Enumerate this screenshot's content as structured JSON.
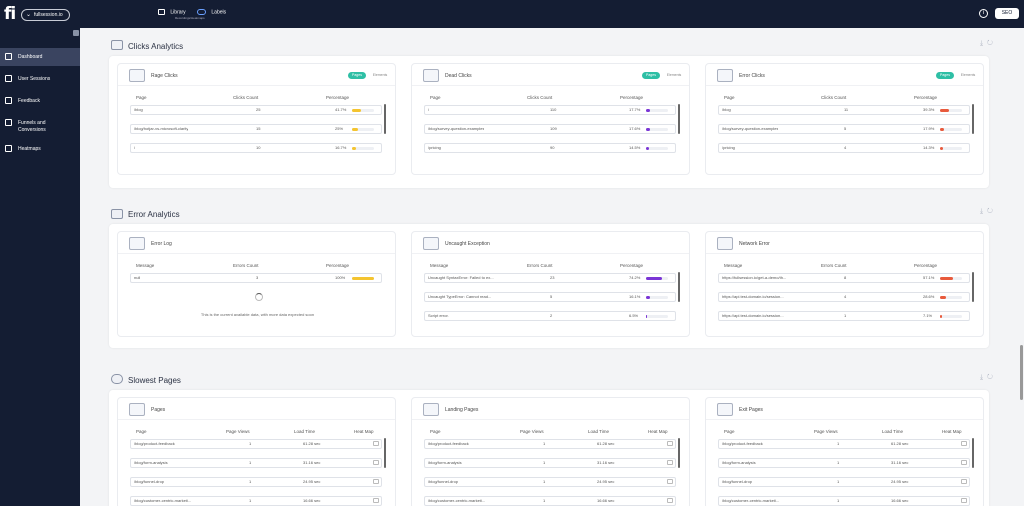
{
  "topbar": {
    "logo": "fi",
    "domain": "fullsession.io",
    "library": "Library",
    "library_sub": "Recordings/Heatmaps",
    "labels": "Labels",
    "info_icon": "info-icon",
    "user_button": "SEO"
  },
  "sidebar": {
    "items": [
      {
        "label": "Dashboard",
        "icon": "dashboard-icon"
      },
      {
        "label": "User Sessions",
        "icon": "user-sessions-icon"
      },
      {
        "label": "Feedback",
        "icon": "feedback-icon"
      },
      {
        "label": "Funnels and Conversions",
        "icon": "funnel-icon"
      },
      {
        "label": "Heatmaps",
        "icon": "heatmap-icon"
      }
    ]
  },
  "clicks_analytics": {
    "title": "Clicks Analytics",
    "cards": [
      {
        "title": "Rage Clicks",
        "toggle": [
          "Pages",
          "Elements"
        ],
        "headers": [
          "Page",
          "Clicks Count",
          "Percentage"
        ],
        "rows": [
          {
            "c1": "/blog",
            "c2": "25",
            "c3": "41.7%",
            "pct": 41.7
          },
          {
            "c1": "/blog/hotjar-vs-microsoft-clarity",
            "c2": "15",
            "c3": "25%",
            "pct": 25
          },
          {
            "c1": "/",
            "c2": "10",
            "c3": "16.7%",
            "pct": 16.7
          }
        ],
        "bar_color": "#f4c430"
      },
      {
        "title": "Dead Clicks",
        "toggle": [
          "Pages",
          "Elements"
        ],
        "headers": [
          "Page",
          "Clicks Count",
          "Percentage"
        ],
        "rows": [
          {
            "c1": "/",
            "c2": "110",
            "c3": "17.7%",
            "pct": 17.7
          },
          {
            "c1": "/blog/survey-question-examples",
            "c2": "109",
            "c3": "17.6%",
            "pct": 17.6
          },
          {
            "c1": "/pricing",
            "c2": "90",
            "c3": "14.5%",
            "pct": 14.5
          }
        ],
        "bar_color": "#7a35d6"
      },
      {
        "title": "Error Clicks",
        "toggle": [
          "Pages",
          "Elements"
        ],
        "headers": [
          "Page",
          "Clicks Count",
          "Percentage"
        ],
        "rows": [
          {
            "c1": "/blog",
            "c2": "11",
            "c3": "39.3%",
            "pct": 39.3
          },
          {
            "c1": "/blog/survey-question-examples",
            "c2": "5",
            "c3": "17.9%",
            "pct": 17.9
          },
          {
            "c1": "/pricing",
            "c2": "4",
            "c3": "14.3%",
            "pct": 14.3
          }
        ],
        "bar_color": "#e85a3c"
      }
    ]
  },
  "error_analytics": {
    "title": "Error Analytics",
    "cards": [
      {
        "title": "Error Log",
        "headers": [
          "Message",
          "Errors Count",
          "Percentage"
        ],
        "rows": [
          {
            "c1": "null",
            "c2": "3",
            "c3": "100%",
            "pct": 100
          }
        ],
        "bar_color": "#f4c430",
        "empty_note": "This is the current available data, with more data expected soon"
      },
      {
        "title": "Uncaught Exception",
        "headers": [
          "Message",
          "Errors Count",
          "Percentage"
        ],
        "rows": [
          {
            "c1": "Uncaught SyntaxError: Failed to ex...",
            "c2": "23",
            "c3": "74.2%",
            "pct": 74.2
          },
          {
            "c1": "Uncaught TypeError: Cannot read...",
            "c2": "5",
            "c3": "16.1%",
            "pct": 16.1
          },
          {
            "c1": "Script error.",
            "c2": "2",
            "c3": "6.5%",
            "pct": 6.5
          }
        ],
        "bar_color": "#7a35d6"
      },
      {
        "title": "Network Error",
        "headers": [
          "Message",
          "Errors Count",
          "Percentage"
        ],
        "rows": [
          {
            "c1": "https://fullsession.io/get-a-demo/th...",
            "c2": "8",
            "c3": "57.1%",
            "pct": 57.1
          },
          {
            "c1": "https://api.test-domain.io/session...",
            "c2": "4",
            "c3": "28.6%",
            "pct": 28.6
          },
          {
            "c1": "https://api.test-domain.io/session...",
            "c2": "1",
            "c3": "7.1%",
            "pct": 7.1
          }
        ],
        "bar_color": "#e85a3c"
      }
    ]
  },
  "slowest_pages": {
    "title": "Slowest Pages",
    "cards": [
      {
        "title": "Pages",
        "headers": [
          "Page",
          "Page Views",
          "Load Time",
          "Heat Map"
        ],
        "rows": [
          {
            "c1": "/blog/product-feedback",
            "c2": "1",
            "c3": "61.28 sec"
          },
          {
            "c1": "/blog/form-analysis",
            "c2": "1",
            "c3": "31.16 sec"
          },
          {
            "c1": "/blog/funnel-drop",
            "c2": "1",
            "c3": "24.95 sec"
          },
          {
            "c1": "/blog/customer-centric-marketi...",
            "c2": "1",
            "c3": "16.66 sec"
          }
        ]
      },
      {
        "title": "Landing Pages",
        "headers": [
          "Page",
          "Page Views",
          "Load Time",
          "Heat Map"
        ],
        "rows": [
          {
            "c1": "/blog/product-feedback",
            "c2": "1",
            "c3": "61.28 sec"
          },
          {
            "c1": "/blog/form-analysis",
            "c2": "1",
            "c3": "31.16 sec"
          },
          {
            "c1": "/blog/funnel-drop",
            "c2": "1",
            "c3": "24.95 sec"
          },
          {
            "c1": "/blog/customer-centric-marketi...",
            "c2": "1",
            "c3": "16.66 sec"
          }
        ]
      },
      {
        "title": "Exit Pages",
        "headers": [
          "Page",
          "Page Views",
          "Load Time",
          "Heat Map"
        ],
        "rows": [
          {
            "c1": "/blog/product-feedback",
            "c2": "1",
            "c3": "61.28 sec"
          },
          {
            "c1": "/blog/form-analysis",
            "c2": "1",
            "c3": "31.16 sec"
          },
          {
            "c1": "/blog/funnel-drop",
            "c2": "1",
            "c3": "24.95 sec"
          },
          {
            "c1": "/blog/customer-centric-marketi...",
            "c2": "1",
            "c3": "16.66 sec"
          }
        ]
      }
    ]
  }
}
